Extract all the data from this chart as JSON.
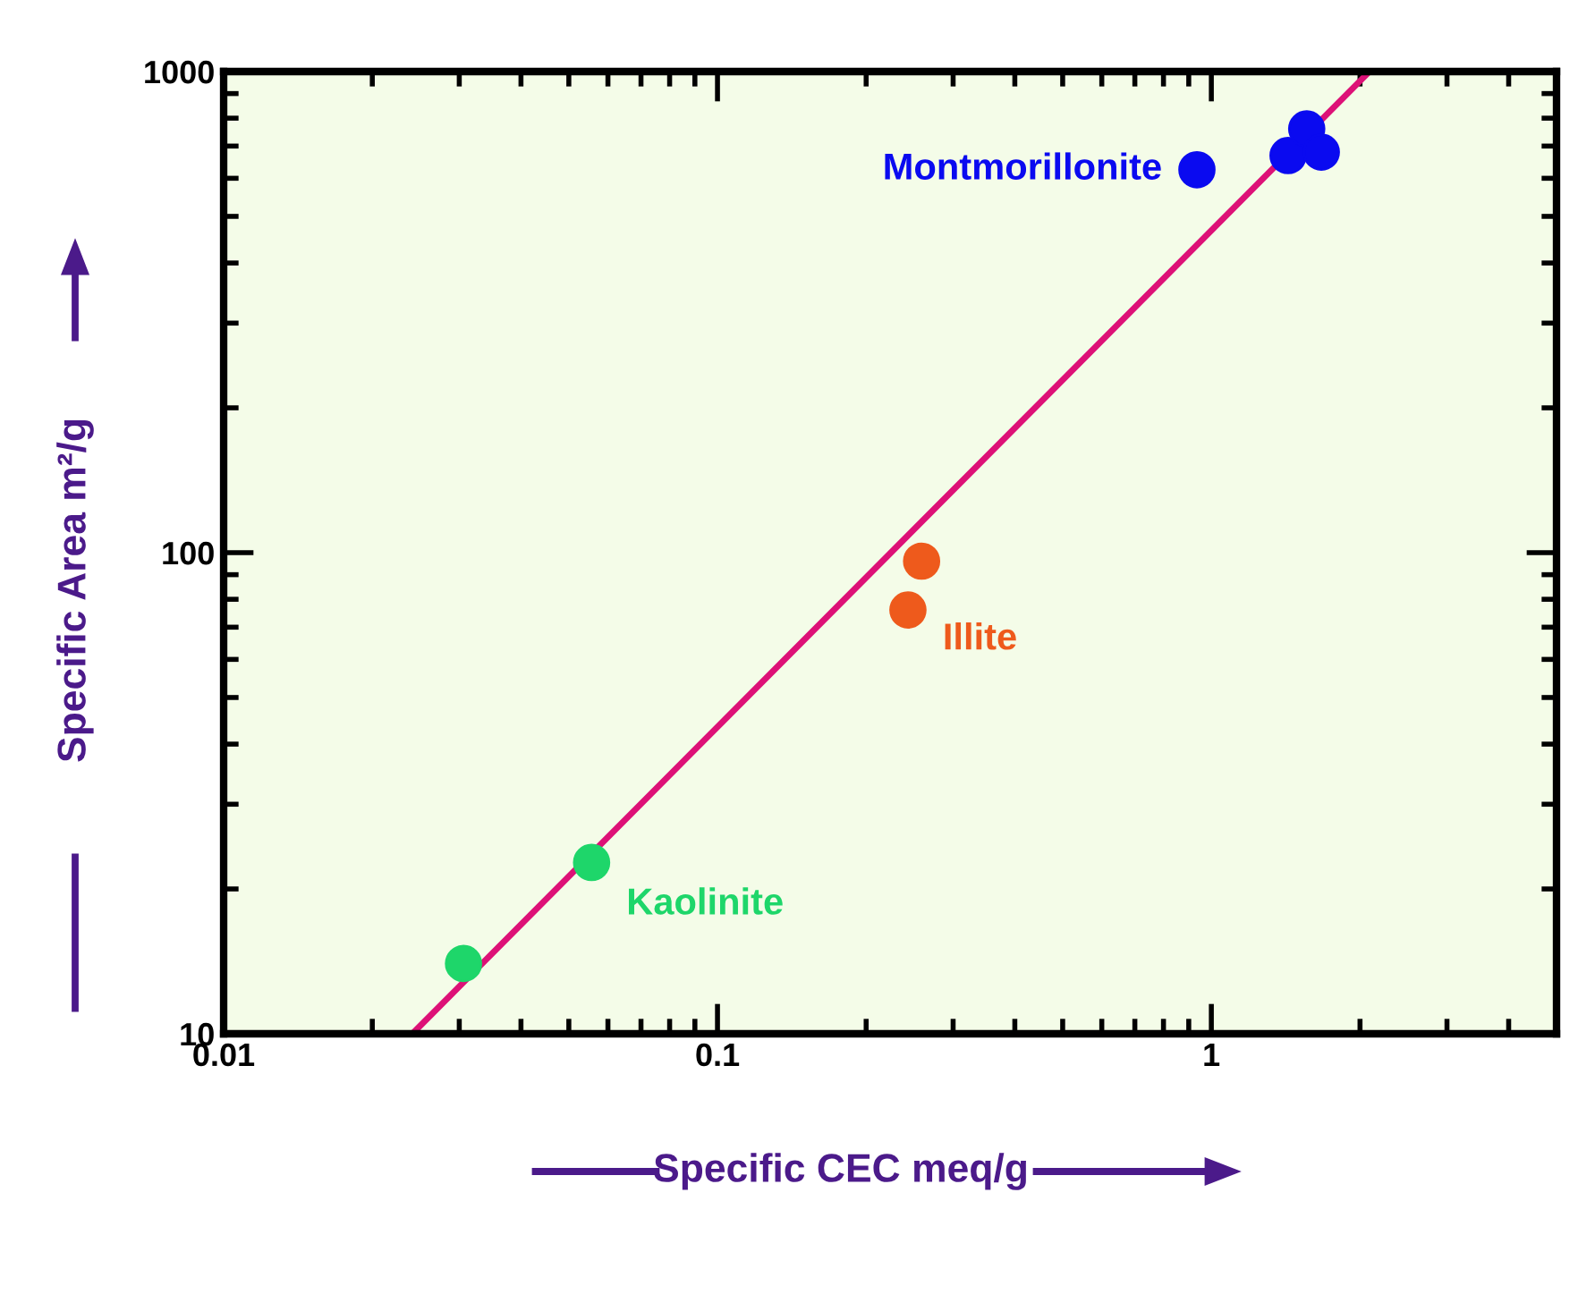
{
  "chart_data": {
    "type": "scatter",
    "xlabel": "Specific CEC meq/g",
    "ylabel": "Specific Area m²/g",
    "log": "xy",
    "xlim": [
      0.01,
      5
    ],
    "ylim": [
      10,
      1000
    ],
    "xticks": [
      0.01,
      0.1,
      1
    ],
    "yticks": [
      10,
      100,
      1000
    ],
    "grid": false,
    "legend": false,
    "marker": "circle",
    "series": [
      {
        "name": "Montmorillonite",
        "color": "#0a0af0",
        "x": [
          0.935,
          1.43,
          1.56,
          1.67
        ],
        "values": [
          625,
          669,
          760,
          680
        ]
      },
      {
        "name": "Illite",
        "color": "#ee5a1c",
        "x": [
          0.259,
          0.243
        ],
        "values": [
          96,
          76
        ]
      },
      {
        "name": "Kaolinite",
        "color": "#1ed66a",
        "x": [
          0.0306,
          0.0556
        ],
        "values": [
          14,
          22.7
        ]
      },
      {
        "type": "line",
        "color": "#dd1177",
        "x": [
          0.0241,
          2.09
        ],
        "values": [
          10,
          1000
        ],
        "marker": "none"
      }
    ]
  }
}
